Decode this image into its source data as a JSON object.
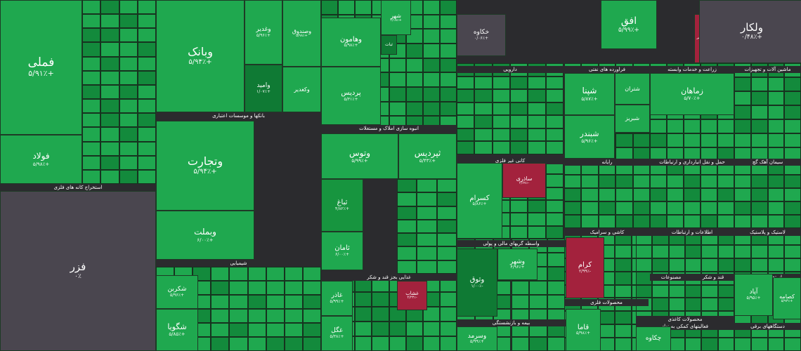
{
  "chart_data": {
    "type": "treemap",
    "title": "",
    "colors": {
      "positive": "#1fa84f",
      "positive_mid": "#17953f",
      "positive_dark": "#0f7a34",
      "neutral": "#4a464f",
      "negative": "#a3223d",
      "negative_light": "#c2415d",
      "background": "#2b2b2e"
    },
    "sectors": [
      {
        "name": "استخراج کانه های فلزی"
      },
      {
        "name": "بانکها و موسسات اعتباری"
      },
      {
        "name": "شیمیایی"
      },
      {
        "name": "انبوه سازی املاک و مستغلات"
      },
      {
        "name": "غذایی بجز قند و شکر"
      },
      {
        "name": "دارویی"
      },
      {
        "name": "کانی غیر فلزی"
      },
      {
        "name": "واسطه گریهای مالی و پولی"
      },
      {
        "name": "بیمه و بازنشستگی"
      },
      {
        "name": "فراورده های نفتی"
      },
      {
        "name": "رایانه"
      },
      {
        "name": "کاشی و سرامیک"
      },
      {
        "name": "محصولات فلزی"
      },
      {
        "name": "زراعت و خدمات وابسته"
      },
      {
        "name": "حمل و نقل انبارداری و ارتباطات"
      },
      {
        "name": "اطلاعات و ارتباطات"
      },
      {
        "name": "عرضه برق، گاز، بخاروآب گرم"
      },
      {
        "name": "مصنوعات"
      },
      {
        "name": "قند و شکر"
      },
      {
        "name": "ماشین آلات و تجهیزات"
      },
      {
        "name": "سیمان آهک گچ"
      },
      {
        "name": "لاستیک و پلاستیک"
      },
      {
        "name": "هتل و رستوران"
      },
      {
        "name": "استخراج سایر"
      },
      {
        "name": "فعالیتهای کمکی به نهاد"
      },
      {
        "name": "دستگاههای برقی"
      },
      {
        "name": "محصولات کاغذی"
      }
    ],
    "symbols": [
      {
        "name": "فملی",
        "change": "+۵/۹۱٪"
      },
      {
        "name": "فولاد",
        "change": "+۵/۹۸٪"
      },
      {
        "name": "فزر",
        "change": "۰٪"
      },
      {
        "name": "وبانک",
        "change": "+۵/۹۴٪"
      },
      {
        "name": "وتجارت",
        "change": "+۵/۹۴٪"
      },
      {
        "name": "وبملت",
        "change": "+۶/۰۰٪"
      },
      {
        "name": "وامید",
        "change": "+۱/۰۷٪"
      },
      {
        "name": "وغدیر",
        "change": "+۵/۹۶٪"
      },
      {
        "name": "وصندوق",
        "change": "+۵/۹۸٪"
      },
      {
        "name": "وکغدیر",
        "change": ""
      },
      {
        "name": "وهامون",
        "change": "+۵/۹۸٪"
      },
      {
        "name": "پردیس",
        "change": "+۵/۳۱٪"
      },
      {
        "name": "شهر",
        "change": "+۴/۱۸٪"
      },
      {
        "name": "ثبات",
        "change": ""
      },
      {
        "name": "وتوس",
        "change": "+۵/۹۹٪"
      },
      {
        "name": "ثپردیس",
        "change": "+۵/۴۳٪"
      },
      {
        "name": "ثباغ",
        "change": "+۴/۸۲٪"
      },
      {
        "name": "ثامان",
        "change": "+۶/۰۰٪"
      },
      {
        "name": "شکربن",
        "change": "+۵/۹۶٪"
      },
      {
        "name": "شگویا",
        "change": "+۵/۸۵٪"
      },
      {
        "name": "غگل",
        "change": "+۵/۳۸٪"
      },
      {
        "name": "غاذر",
        "change": "+۵/۹۹٪"
      },
      {
        "name": "غشاب",
        "change": "-۲/۲۳٪"
      },
      {
        "name": "خکاوه",
        "change": "+۰/۰۶٪"
      },
      {
        "name": "ساذری",
        "change": "-۲/۶۷٪"
      },
      {
        "name": "کسرام",
        "change": "+۵/۸۶٪"
      },
      {
        "name": "وثوق",
        "change": "-۱/۰۰٪"
      },
      {
        "name": "وشهر",
        "change": "+۴/۹۶٪"
      },
      {
        "name": "وسرمد",
        "change": "+۵/۹۹٪"
      },
      {
        "name": "شپنا",
        "change": "+۵/۸۷٪"
      },
      {
        "name": "شبندر",
        "change": "+۵/۹۶٪"
      },
      {
        "name": "شتران",
        "change": ""
      },
      {
        "name": "شبریز",
        "change": ""
      },
      {
        "name": "اخابر",
        "change": ""
      },
      {
        "name": "افق",
        "change": "+۵/۹۹٪"
      },
      {
        "name": "ولکار",
        "change": "+۰/۴۸٪"
      },
      {
        "name": "زماهان",
        "change": "+۵/۷۰٪"
      },
      {
        "name": "کرام",
        "change": "-۲/۹۹٪"
      },
      {
        "name": "قاما",
        "change": "+۵/۹۸٪"
      },
      {
        "name": "آپاد",
        "change": "+۵/۹۵٪"
      },
      {
        "name": "کصامه",
        "change": "+۵/۹۳٪"
      },
      {
        "name": "چکاوه",
        "change": ""
      }
    ]
  }
}
